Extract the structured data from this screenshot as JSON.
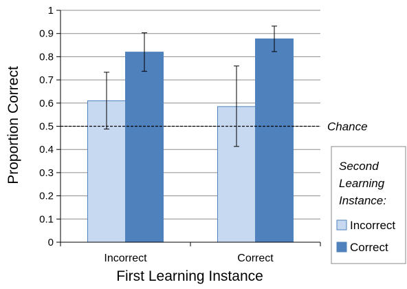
{
  "chart_data": {
    "type": "bar",
    "categories": [
      "Incorrect",
      "Correct"
    ],
    "series": [
      {
        "name": "Incorrect",
        "color": "#c6d9f1",
        "edge": "#4f81bd",
        "values": [
          0.61,
          0.585
        ],
        "error_low": [
          0.488,
          0.413
        ],
        "error_high": [
          0.733,
          0.76
        ]
      },
      {
        "name": "Correct",
        "color": "#4f81bd",
        "edge": "#4f81bd",
        "values": [
          0.82,
          0.877
        ],
        "error_low": [
          0.737,
          0.822
        ],
        "error_high": [
          0.903,
          0.932
        ]
      }
    ],
    "xlabel": "First Learning Instance",
    "ylabel": "Proportion Correct",
    "ylim": [
      0,
      1
    ],
    "yticks": [
      "0",
      "0.1",
      "0.2",
      "0.3",
      "0.4",
      "0.5",
      "0.6",
      "0.7",
      "0.8",
      "0.9",
      "1"
    ],
    "grid": true,
    "reference_line": {
      "value": 0.5,
      "label": "Chance",
      "style": "dashed"
    },
    "legend": {
      "title": [
        "Second",
        "Learning",
        "Instance:"
      ],
      "placement": "right"
    }
  }
}
